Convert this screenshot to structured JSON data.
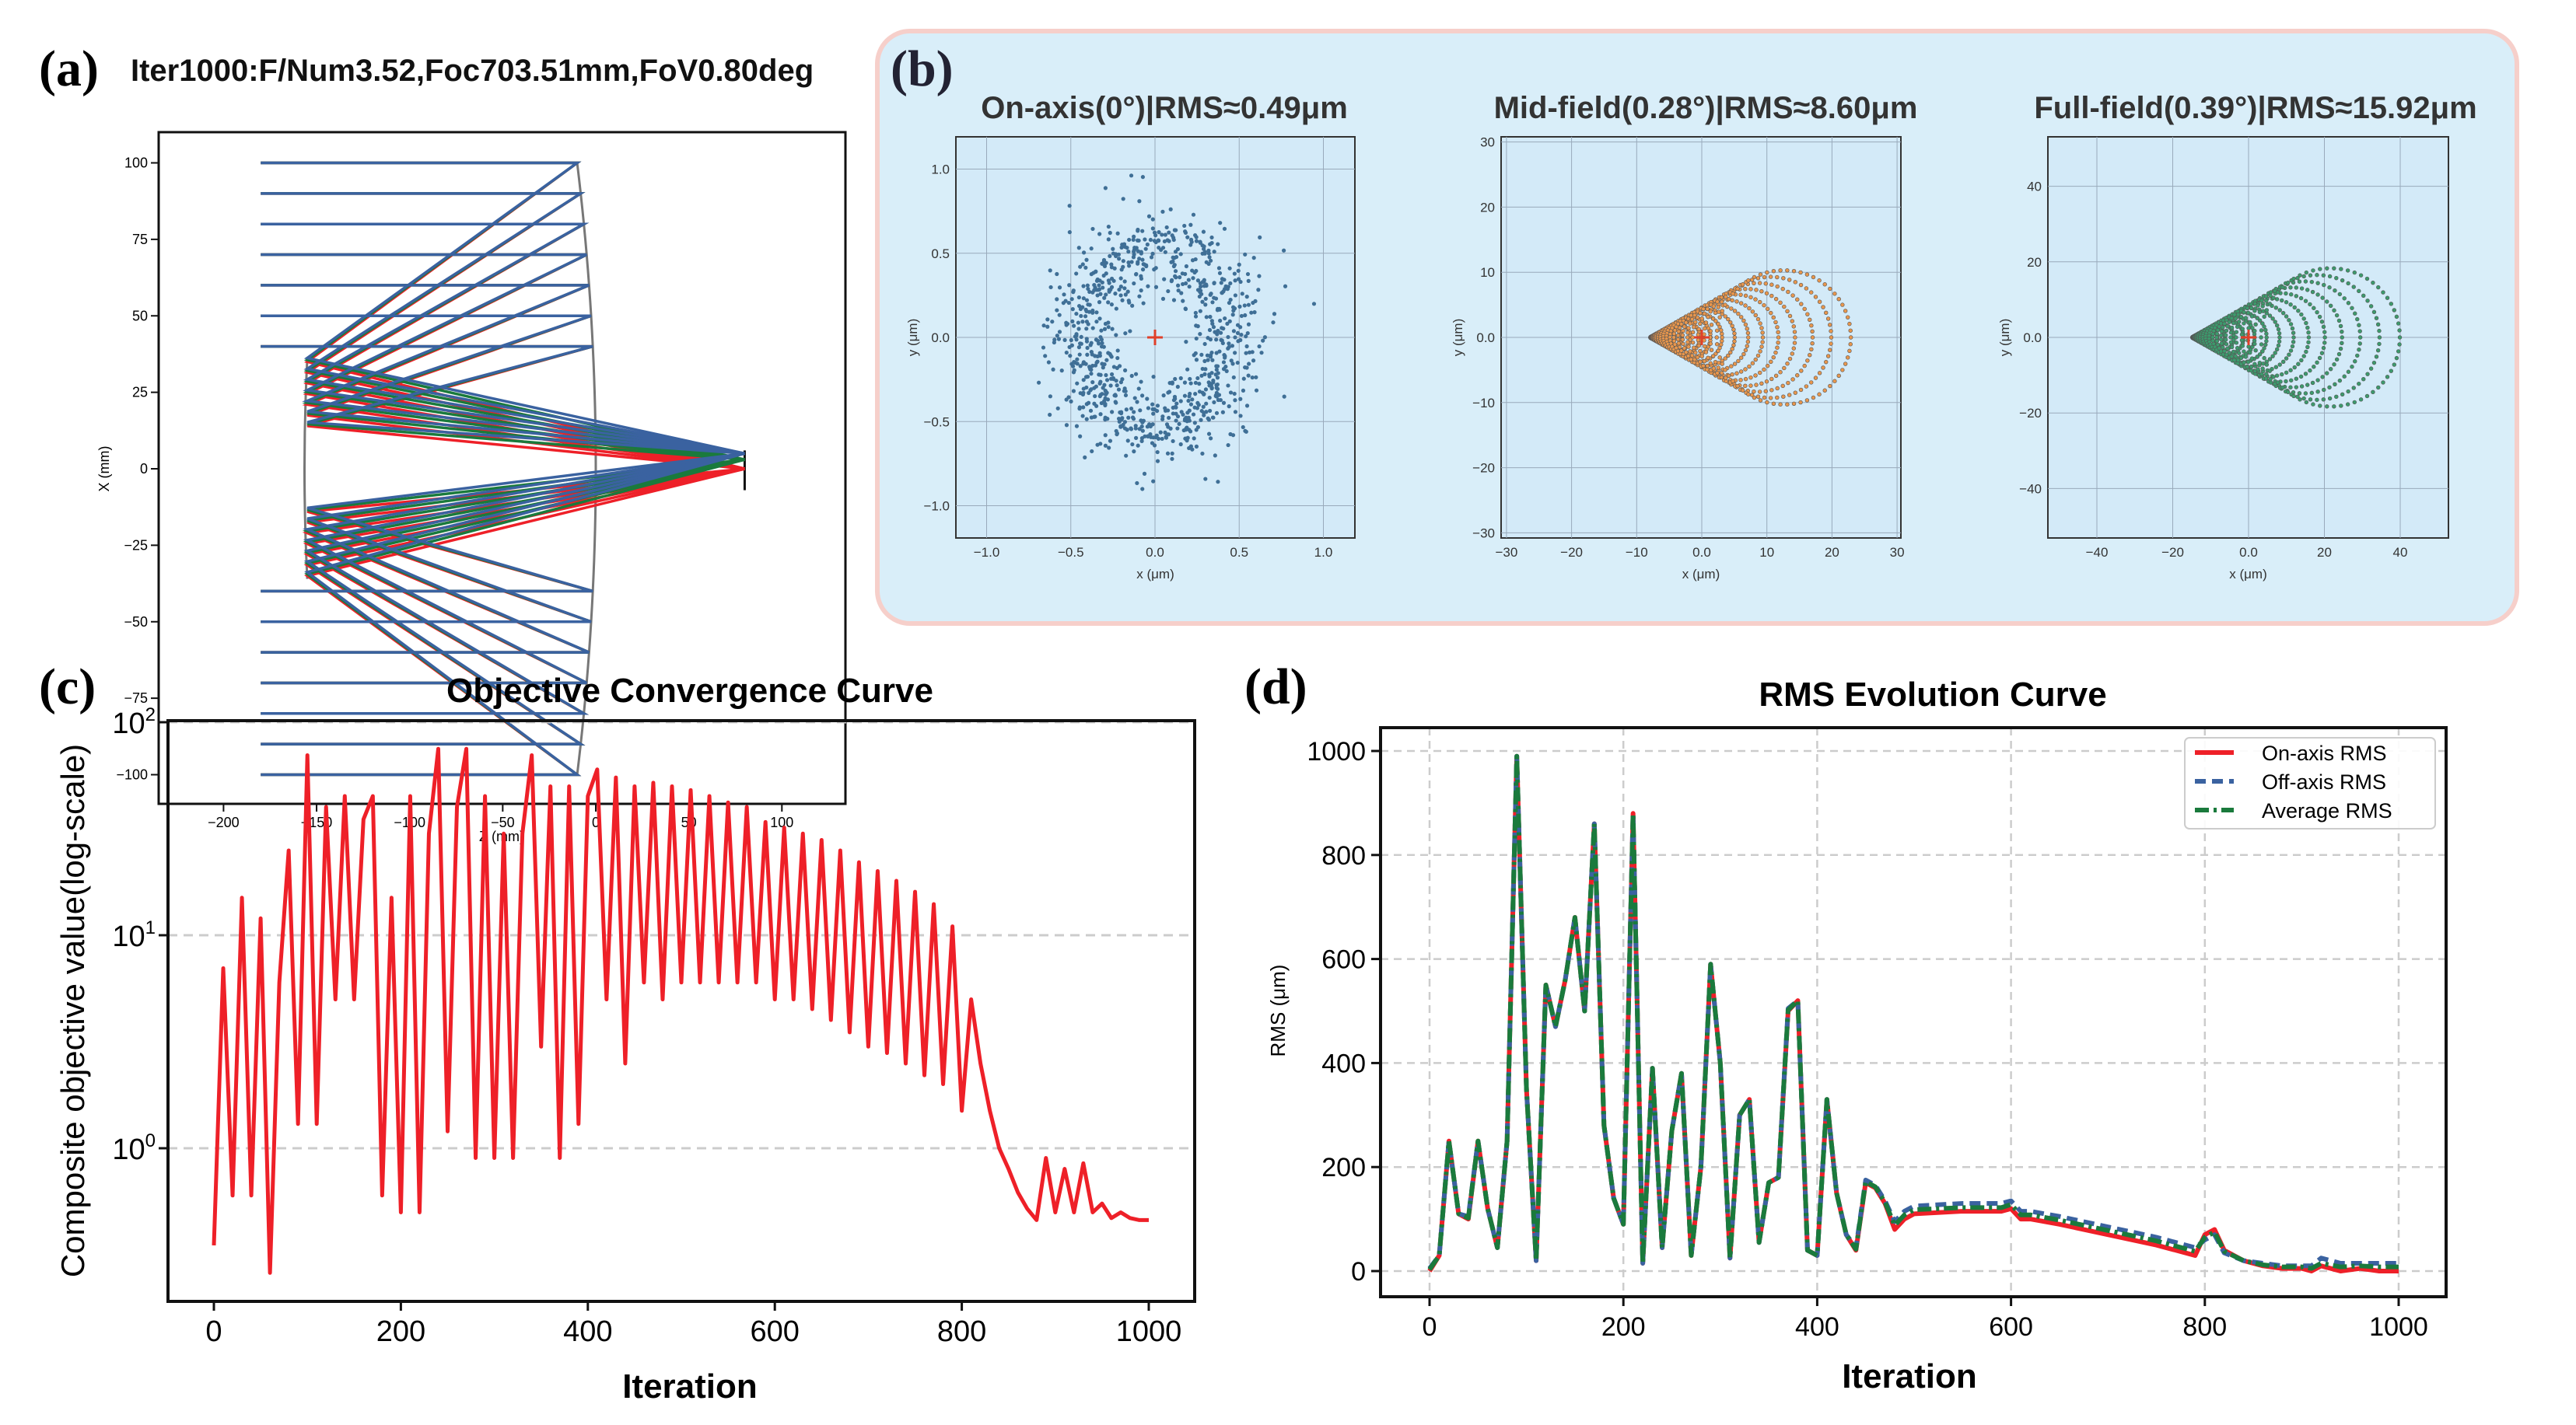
{
  "panel_labels": {
    "a": "(a)",
    "b": "(b)",
    "c": "(c)",
    "d": "(d)"
  },
  "colors": {
    "red": "#ee2028",
    "blue": "#3a62a0",
    "green": "#1a7a3c",
    "orange": "#e8964c",
    "spot_green": "#3c9a6c",
    "spot_blue": "#3f6f96",
    "panel_bg": "#d9eef9",
    "panel_border": "#f6cfca"
  },
  "chart_data": [
    {
      "id": "a",
      "type": "ray-trace",
      "title": "Iter1000:F/Num3.52,Foc703.51mm,FoV0.80deg",
      "xlabel": "Z (mm)",
      "ylabel": "X (mm)",
      "xlim": [
        -235,
        135
      ],
      "ylim": [
        -110,
        110
      ],
      "xticks": [
        -200,
        -150,
        -100,
        -50,
        0,
        50,
        100
      ],
      "yticks": [
        -100,
        -75,
        -50,
        -25,
        0,
        25,
        50,
        75,
        100
      ],
      "ray_heights": [
        100,
        90,
        80,
        70,
        60,
        50,
        40,
        -40,
        -50,
        -60,
        -70,
        -80,
        -90,
        -100
      ],
      "ray_start_z": -180,
      "primary_z_edge": -10,
      "secondary_z": -155,
      "image_z": 80,
      "focus_x_by_field": [
        0,
        3,
        5
      ]
    },
    {
      "id": "b1",
      "type": "scatter",
      "title": "On-axis(0°)|RMS≈0.49μm",
      "xlabel": "x (μm)",
      "ylabel": "y (μm)",
      "xlim": [
        -1.2,
        1.2
      ],
      "ylim": [
        -1.2,
        1.2
      ],
      "xticks": [
        -1.0,
        -0.5,
        0.0,
        0.5,
        1.0
      ],
      "yticks": [
        -1.0,
        -0.5,
        0.0,
        0.5,
        1.0
      ],
      "pattern": "ring",
      "ring_radius": 0.45,
      "points": 900
    },
    {
      "id": "b2",
      "type": "scatter",
      "title": "Mid-field(0.28°)|RMS≈8.60μm",
      "xlabel": "x (μm)",
      "ylabel": "y (μm)",
      "xlim": [
        -31,
        31
      ],
      "ylim": [
        -31,
        31
      ],
      "xticks": [
        -30,
        -20,
        -10,
        0,
        10,
        20,
        30
      ],
      "yticks": [
        -30,
        -20,
        -10,
        0,
        10,
        20,
        30
      ],
      "pattern": "coma",
      "apex_x": -8,
      "coma_size": 10.3
    },
    {
      "id": "b3",
      "type": "scatter",
      "title": "Full-field(0.39°)|RMS≈15.92μm",
      "xlabel": "x (μm)",
      "ylabel": "y (μm)",
      "xlim": [
        -53,
        53
      ],
      "ylim": [
        -53,
        53
      ],
      "xticks": [
        -40,
        -20,
        0,
        20,
        40
      ],
      "yticks": [
        -40,
        -20,
        0,
        20,
        40
      ],
      "pattern": "coma",
      "apex_x": -15,
      "coma_size": 18.3
    },
    {
      "id": "c",
      "type": "line",
      "title": "Objective Convergence Curve",
      "xlabel": "Iteration",
      "ylabel": "Composite objective value(log-scale)",
      "yscale": "log",
      "xlim": [
        -50,
        1050
      ],
      "ylim": [
        0.2,
        100
      ],
      "xticks": [
        0,
        200,
        400,
        600,
        800,
        1000
      ],
      "yticks": [
        {
          "base": "10",
          "exp": "0",
          "value": 1
        },
        {
          "base": "10",
          "exp": "1",
          "value": 10
        },
        {
          "base": "10",
          "exp": "2",
          "value": 100
        }
      ],
      "grid": "horizontal-dashed",
      "x": [
        0,
        10,
        20,
        30,
        40,
        50,
        60,
        70,
        80,
        90,
        100,
        110,
        120,
        130,
        140,
        150,
        160,
        170,
        180,
        190,
        200,
        210,
        220,
        230,
        240,
        250,
        260,
        270,
        280,
        290,
        300,
        310,
        320,
        330,
        340,
        350,
        360,
        370,
        380,
        390,
        400,
        410,
        420,
        430,
        440,
        450,
        460,
        470,
        480,
        490,
        500,
        510,
        520,
        530,
        540,
        550,
        560,
        570,
        580,
        590,
        600,
        610,
        620,
        630,
        640,
        650,
        660,
        670,
        680,
        690,
        700,
        710,
        720,
        730,
        740,
        750,
        760,
        770,
        780,
        790,
        800,
        810,
        820,
        830,
        840,
        850,
        860,
        870,
        880,
        890,
        900,
        910,
        920,
        930,
        940,
        950,
        960,
        970,
        980,
        990,
        1000
      ],
      "series": [
        {
          "name": "objective",
          "values": [
            0.35,
            7,
            0.6,
            15,
            0.6,
            12,
            0.26,
            6,
            25,
            1.3,
            70,
            1.3,
            40,
            5,
            45,
            5,
            35,
            45,
            0.6,
            15,
            0.5,
            45,
            0.5,
            30,
            75,
            1.2,
            40,
            75,
            0.9,
            45,
            0.9,
            30,
            0.9,
            30,
            70,
            3,
            50,
            0.9,
            50,
            1.3,
            45,
            60,
            5,
            55,
            2.5,
            50,
            6,
            52,
            5,
            50,
            6,
            48,
            6,
            45,
            6,
            42,
            6,
            40,
            6,
            34,
            5,
            32,
            5,
            30,
            4.5,
            28,
            4,
            25,
            3.5,
            22,
            3,
            20,
            2.8,
            18,
            2.5,
            16,
            2.2,
            14,
            2,
            11,
            1.5,
            5,
            2.5,
            1.5,
            1.0,
            0.8,
            0.62,
            0.52,
            0.46,
            0.9,
            0.5,
            0.8,
            0.5,
            0.85,
            0.5,
            0.55,
            0.47,
            0.5,
            0.47,
            0.46,
            0.46
          ]
        }
      ]
    },
    {
      "id": "d",
      "type": "line",
      "title": "RMS Evolution Curve",
      "xlabel": "Iteration",
      "ylabel": "RMS (μm)",
      "xlim": [
        -50,
        1050
      ],
      "ylim": [
        -50,
        1050
      ],
      "xticks": [
        0,
        200,
        400,
        600,
        800,
        1000
      ],
      "yticks": [
        0,
        200,
        400,
        600,
        800,
        1000
      ],
      "grid": "both-dashed",
      "legend_position": "top-right",
      "x": [
        0,
        10,
        20,
        30,
        40,
        50,
        60,
        70,
        80,
        90,
        100,
        110,
        120,
        130,
        140,
        150,
        160,
        170,
        180,
        190,
        200,
        210,
        220,
        230,
        240,
        250,
        260,
        270,
        280,
        290,
        300,
        310,
        320,
        330,
        340,
        350,
        360,
        370,
        380,
        390,
        400,
        410,
        420,
        430,
        440,
        450,
        460,
        470,
        480,
        490,
        500,
        550,
        590,
        600,
        610,
        620,
        650,
        700,
        750,
        790,
        800,
        810,
        820,
        840,
        860,
        880,
        900,
        910,
        920,
        940,
        960,
        980,
        1000
      ],
      "series": [
        {
          "name": "On-axis RMS",
          "style": "solid",
          "values": [
            0,
            30,
            250,
            110,
            100,
            250,
            120,
            45,
            250,
            990,
            350,
            20,
            550,
            470,
            560,
            680,
            500,
            860,
            280,
            140,
            90,
            880,
            15,
            390,
            45,
            270,
            380,
            30,
            200,
            590,
            400,
            25,
            300,
            330,
            55,
            170,
            180,
            500,
            520,
            40,
            30,
            330,
            150,
            70,
            40,
            170,
            160,
            130,
            80,
            100,
            110,
            115,
            115,
            120,
            100,
            100,
            90,
            70,
            50,
            30,
            70,
            80,
            40,
            20,
            10,
            5,
            5,
            0,
            10,
            0,
            5,
            0,
            0
          ]
        },
        {
          "name": "Off-axis RMS",
          "style": "dashed",
          "values": [
            5,
            30,
            250,
            110,
            105,
            250,
            120,
            45,
            250,
            990,
            350,
            20,
            550,
            470,
            560,
            680,
            500,
            860,
            280,
            140,
            90,
            880,
            15,
            390,
            45,
            270,
            380,
            30,
            200,
            590,
            400,
            25,
            300,
            330,
            55,
            170,
            180,
            505,
            520,
            40,
            30,
            330,
            150,
            70,
            45,
            175,
            165,
            135,
            95,
            115,
            125,
            130,
            130,
            135,
            115,
            115,
            105,
            85,
            65,
            45,
            60,
            70,
            35,
            20,
            15,
            10,
            10,
            10,
            25,
            15,
            15,
            15,
            15
          ]
        },
        {
          "name": "Average RMS",
          "style": "dashdot",
          "values": [
            3,
            30,
            250,
            110,
            102,
            250,
            120,
            45,
            250,
            990,
            350,
            20,
            550,
            470,
            560,
            680,
            500,
            860,
            280,
            140,
            90,
            880,
            15,
            390,
            45,
            270,
            380,
            30,
            200,
            590,
            400,
            25,
            300,
            330,
            55,
            170,
            180,
            502,
            520,
            40,
            30,
            330,
            150,
            70,
            42,
            172,
            162,
            132,
            88,
            108,
            118,
            122,
            122,
            128,
            108,
            108,
            98,
            78,
            58,
            38,
            65,
            75,
            38,
            20,
            12,
            8,
            8,
            5,
            15,
            8,
            10,
            8,
            8
          ]
        }
      ]
    }
  ]
}
